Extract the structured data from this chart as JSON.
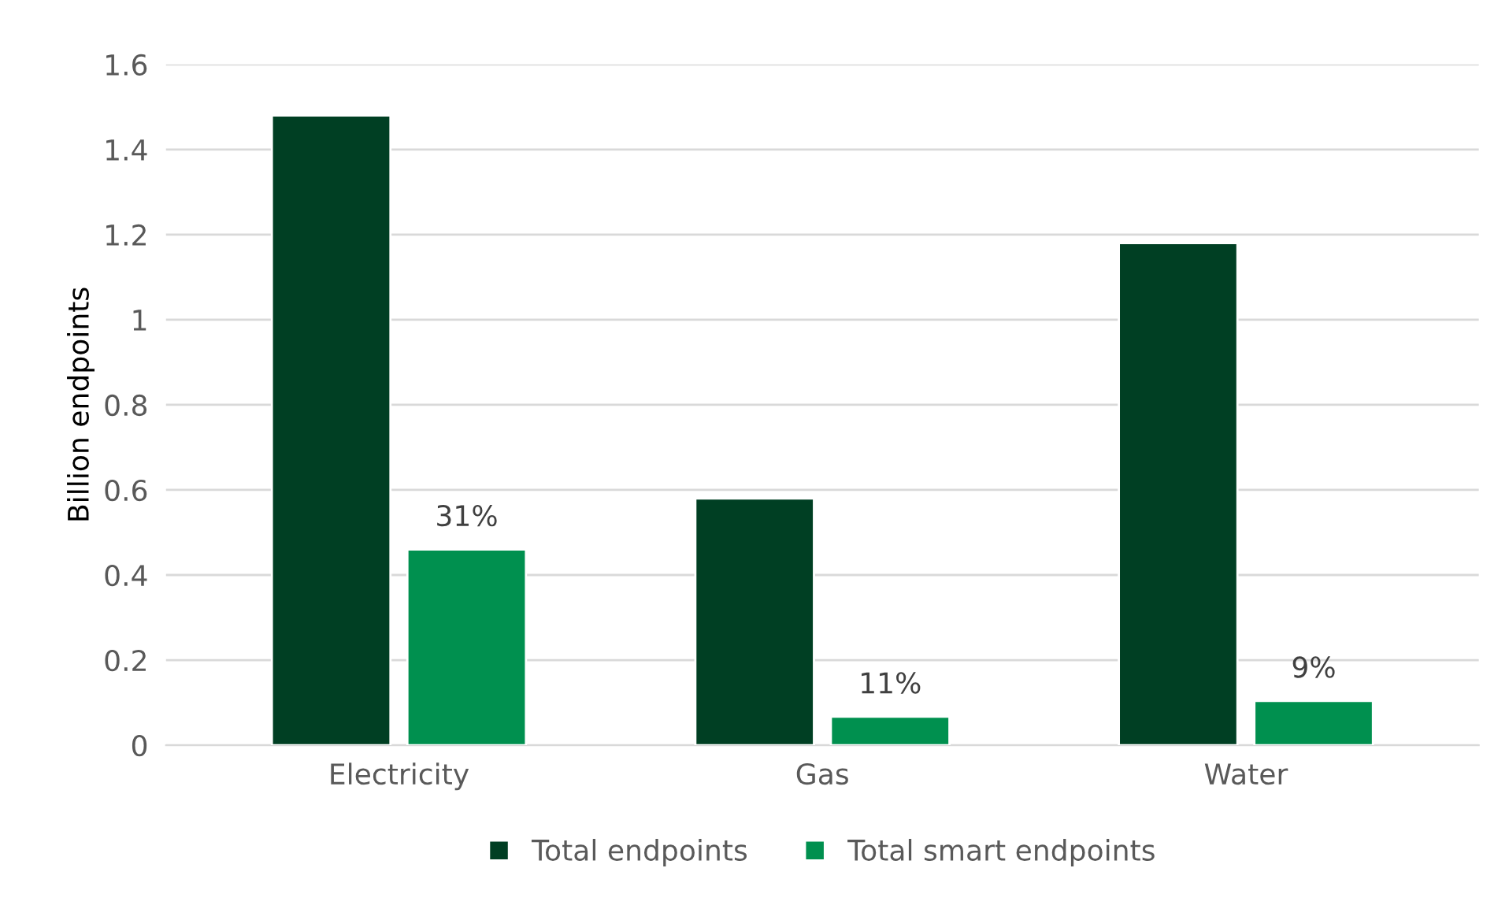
{
  "chart_data": {
    "type": "bar",
    "ylabel": "Billion endpoints",
    "categories": [
      "Electricity",
      "Gas",
      "Water"
    ],
    "series": [
      {
        "name": "Total endpoints",
        "color": "#003f23",
        "values": [
          1.48,
          0.58,
          1.18
        ]
      },
      {
        "name": "Total smart endpoints",
        "color": "#00904f",
        "values": [
          0.46,
          0.067,
          0.104
        ]
      }
    ],
    "annotations": [
      "31%",
      "11%",
      "9%"
    ],
    "ylim": [
      0,
      1.6
    ],
    "yticks": [
      0,
      0.2,
      0.4,
      0.6,
      0.8,
      1,
      1.2,
      1.4,
      1.6
    ],
    "grid": "y",
    "legend": "bottom"
  }
}
